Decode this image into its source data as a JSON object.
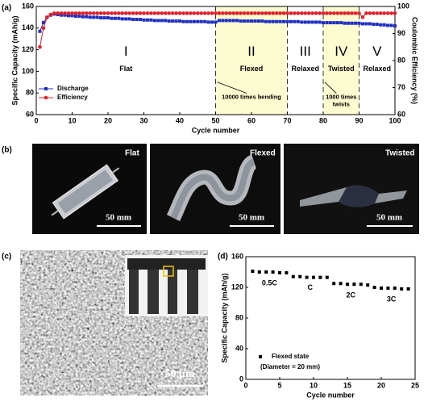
{
  "chart_data": [
    {
      "type": "line",
      "panel_label": "(a)",
      "xlabel": "Cycle number",
      "ylabel": "Specific Capacity (mAh/g)",
      "y2label": "Coulombic Efficiency (%)",
      "xlim": [
        0,
        100
      ],
      "xticks": [
        0,
        10,
        20,
        30,
        40,
        50,
        60,
        70,
        80,
        90,
        100
      ],
      "ylim": [
        60,
        160
      ],
      "yticks": [
        60,
        80,
        100,
        120,
        140,
        160
      ],
      "y2lim": [
        60,
        100
      ],
      "y2ticks": [
        60,
        70,
        80,
        90,
        100
      ],
      "legend": "lower left",
      "regions": [
        {
          "numeral": "I",
          "name": "Flat",
          "start": 0,
          "end": 50,
          "shaded": false,
          "note": []
        },
        {
          "numeral": "II",
          "name": "Flexed",
          "start": 50,
          "end": 70,
          "shaded": true,
          "note": [
            "10000 times bending"
          ]
        },
        {
          "numeral": "III",
          "name": "Relaxed",
          "start": 70,
          "end": 80,
          "shaded": false,
          "note": []
        },
        {
          "numeral": "IV",
          "name": "Twisted",
          "start": 80,
          "end": 90,
          "shaded": true,
          "note": [
            "1000 times",
            "twists"
          ]
        },
        {
          "numeral": "V",
          "name": "Relaxed",
          "start": 90,
          "end": 100,
          "shaded": false,
          "note": []
        }
      ],
      "x": [
        1,
        2,
        3,
        4,
        5,
        6,
        7,
        8,
        9,
        10,
        11,
        12,
        13,
        14,
        15,
        16,
        17,
        18,
        19,
        20,
        21,
        22,
        23,
        24,
        25,
        26,
        27,
        28,
        29,
        30,
        31,
        32,
        33,
        34,
        35,
        36,
        37,
        38,
        39,
        40,
        41,
        42,
        43,
        44,
        45,
        46,
        47,
        48,
        49,
        50,
        51,
        52,
        53,
        54,
        55,
        56,
        57,
        58,
        59,
        60,
        61,
        62,
        63,
        64,
        65,
        66,
        67,
        68,
        69,
        70,
        71,
        72,
        73,
        74,
        75,
        76,
        77,
        78,
        79,
        80,
        81,
        82,
        83,
        84,
        85,
        86,
        87,
        88,
        89,
        90,
        91,
        92,
        93,
        94,
        95,
        96,
        97,
        98,
        99,
        100
      ],
      "series": [
        {
          "name": "Discharge",
          "color": "#1f2fbf",
          "marker": "square",
          "values": [
            137,
            145,
            150,
            152,
            153,
            152.5,
            152,
            152,
            151.5,
            151.5,
            151,
            151,
            150.5,
            150.5,
            150,
            150,
            150,
            149.5,
            149.5,
            149.5,
            149,
            149,
            149,
            148.5,
            148.5,
            148.5,
            148,
            148,
            148,
            147.5,
            147.5,
            147.5,
            147,
            147,
            147,
            147,
            146.5,
            146.5,
            146.5,
            146.5,
            146,
            146,
            146,
            146,
            146,
            146,
            146,
            145.5,
            145.5,
            145.5,
            147,
            147,
            147,
            147,
            147,
            147,
            146.5,
            146.5,
            146.5,
            146.5,
            146.5,
            146.5,
            146.5,
            146,
            146,
            146,
            146,
            146,
            146,
            146,
            146,
            146,
            146,
            145.5,
            145.5,
            145.5,
            145.5,
            145.5,
            145.5,
            145,
            145,
            145,
            145,
            145,
            145,
            144.5,
            144.5,
            144.5,
            144.5,
            144.5,
            144,
            144,
            144,
            143.5,
            143.5,
            143,
            143,
            142.5,
            142.5,
            142
          ]
        },
        {
          "name": "Efficiency",
          "color": "#e0202a",
          "marker": "circle",
          "axis": "y2",
          "values": [
            85,
            92,
            96,
            97,
            97.5,
            97.5,
            97.5,
            97.5,
            97.5,
            97.5,
            97.5,
            97.5,
            97.5,
            97.5,
            97.5,
            97.5,
            97.5,
            97.5,
            97.5,
            97.5,
            97.5,
            97.5,
            97.5,
            97.5,
            97.5,
            97.5,
            97.5,
            97.5,
            97.5,
            97.5,
            97.5,
            97.5,
            97.5,
            97.5,
            97.5,
            97.5,
            97.5,
            97.5,
            97.5,
            97.5,
            97.5,
            97.5,
            97.5,
            97.5,
            97.5,
            97.5,
            97.5,
            97.5,
            97.5,
            97.5,
            97.5,
            97.5,
            97.5,
            97.5,
            97.5,
            97.5,
            97.5,
            97.5,
            97.5,
            97.5,
            97.5,
            97.5,
            97.5,
            97.5,
            97.5,
            97.5,
            97.5,
            97.5,
            97.5,
            97.5,
            97.5,
            97.5,
            97.5,
            97.5,
            97.5,
            97.5,
            97.5,
            97.5,
            97.5,
            97.5,
            97.5,
            97.5,
            97.5,
            97.5,
            97.5,
            97.5,
            97.5,
            97.5,
            97.5,
            97.5,
            96,
            97.5,
            97.5,
            97.5,
            97.5,
            97.5,
            97.5,
            97.5,
            97.5,
            97.5
          ]
        }
      ]
    },
    {
      "type": "scatter",
      "panel_label": "(d)",
      "xlabel": "Cycle number",
      "ylabel": "Specific Capacity (mAh/g)",
      "xlim": [
        0,
        25
      ],
      "xticks": [
        0,
        5,
        10,
        15,
        20,
        25
      ],
      "ylim": [
        0,
        160
      ],
      "yticks": [
        0,
        40,
        80,
        120,
        160
      ],
      "legend": "lower left",
      "legend_note": "(Diameter = 20 mm)",
      "rate_labels": [
        "0.5C",
        "C",
        "2C",
        "3C"
      ],
      "x": [
        1,
        2,
        3,
        4,
        5,
        6,
        7,
        8,
        9,
        10,
        11,
        12,
        13,
        14,
        15,
        16,
        17,
        18,
        19,
        20,
        21,
        22,
        23,
        24
      ],
      "series": [
        {
          "name": "Flexed state",
          "color": "#000000",
          "marker": "square",
          "values": [
            141,
            140,
            140,
            140,
            139,
            139,
            134,
            134,
            133,
            133,
            133,
            133,
            125,
            125,
            124,
            124,
            124,
            123,
            120,
            119,
            119,
            119,
            118,
            118
          ]
        }
      ]
    }
  ],
  "photos": {
    "panel_label": "(b)",
    "items": [
      {
        "label": "Flat",
        "scale": "50 mm"
      },
      {
        "label": "Flexed",
        "scale": "50 mm"
      },
      {
        "label": "Twisted",
        "scale": "50 mm"
      }
    ]
  },
  "sem": {
    "panel_label": "(c)",
    "scale": "50 μm"
  }
}
